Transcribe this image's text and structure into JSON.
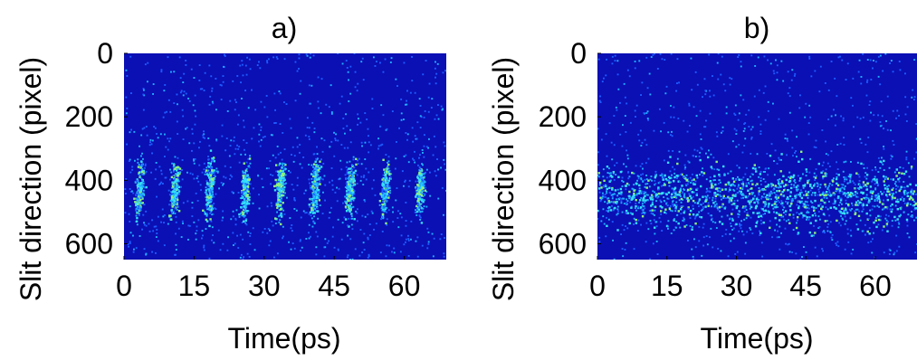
{
  "figure": {
    "panels": [
      "a)",
      "b)"
    ]
  },
  "chart_data": [
    {
      "type": "heatmap",
      "title": "a)",
      "xlabel": "Time(ps)",
      "ylabel": "Slit direction (pixel)",
      "xticks": [
        0,
        15,
        30,
        45,
        60
      ],
      "yticks": [
        0,
        200,
        400,
        600
      ],
      "xlim": [
        0,
        69
      ],
      "ylim": [
        650,
        0
      ],
      "colormap": "jet",
      "background_color": "#0a10b4",
      "spot_colors": [
        "#1e5cff",
        "#1fb0ff",
        "#36e0f8",
        "#8ff27a"
      ],
      "signal_band_y": [
        230,
        640
      ],
      "signal_center_y": 430,
      "stripe_period_ps": 7.5,
      "stripe_positions_ps": [
        3.5,
        11,
        18.5,
        26,
        33.5,
        41,
        48.5,
        56,
        63.5
      ],
      "pattern": "periodic vertical stripes"
    },
    {
      "type": "heatmap",
      "title": "b)",
      "xlabel": "Time(ps)",
      "ylabel": "Slit direction (pixel)",
      "xticks": [
        0,
        15,
        30,
        45,
        60
      ],
      "yticks": [
        0,
        200,
        400,
        600
      ],
      "xlim": [
        0,
        69
      ],
      "ylim": [
        650,
        0
      ],
      "colormap": "jet",
      "background_color": "#0a10b4",
      "spot_colors": [
        "#1e5cff",
        "#1fb0ff",
        "#36e0f8",
        "#8ff27a"
      ],
      "signal_band_y": [
        250,
        650
      ],
      "signal_center_y": 450,
      "pattern": "diffuse, no periodic stripes"
    }
  ]
}
